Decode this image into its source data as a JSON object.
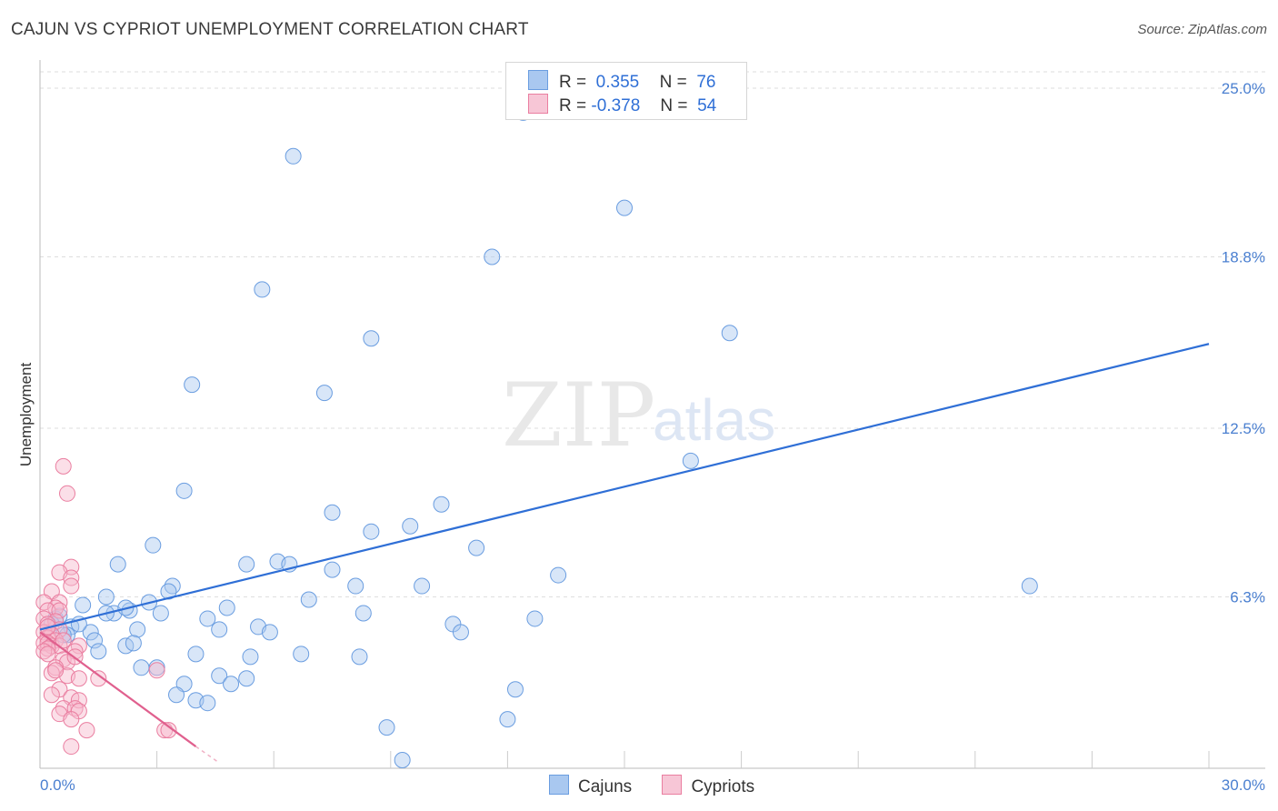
{
  "header": {
    "title": "CAJUN VS CYPRIOT UNEMPLOYMENT CORRELATION CHART",
    "source": "Source: ZipAtlas.com"
  },
  "watermark": {
    "zip": "ZIP",
    "atlas": "atlas"
  },
  "colors": {
    "cajun_fill": "#a9c8f0",
    "cajun_stroke": "#6a9de0",
    "cajun_line": "#2f6fd6",
    "cypriot_fill": "#f7b9cc",
    "cypriot_stroke": "#ea7ea0",
    "cypriot_line": "#e0608e",
    "accent_text": "#2f6fd6"
  },
  "legend": {
    "rows": [
      {
        "series": "Cajuns",
        "r_label": "R =",
        "r_value": "0.355",
        "n_label": "N =",
        "n_value": "76"
      },
      {
        "series": "Cypriots",
        "r_label": "R =",
        "r_value": "-0.378",
        "n_label": "N =",
        "n_value": "54"
      }
    ]
  },
  "bottom_legend": [
    "Cajuns",
    "Cypriots"
  ],
  "chart_data": {
    "type": "scatter",
    "title": "CAJUN VS CYPRIOT UNEMPLOYMENT CORRELATION CHART",
    "xlabel": "",
    "ylabel": "Unemployment",
    "xlim": [
      0,
      30
    ],
    "ylim": [
      0,
      25
    ],
    "x_tick_labels": [
      "0.0%",
      "30.0%"
    ],
    "y_ticks": [
      6.3,
      12.5,
      18.8,
      25.0
    ],
    "y_tick_labels": [
      "6.3%",
      "12.5%",
      "18.8%",
      "25.0%"
    ],
    "grid": true,
    "legend_position": "top-center",
    "series": [
      {
        "name": "Cajuns",
        "r": 0.355,
        "n": 76,
        "trendline": {
          "x": [
            0,
            30
          ],
          "y": [
            5.1,
            15.6
          ]
        },
        "points": [
          [
            12.4,
            24.1
          ],
          [
            6.5,
            22.5
          ],
          [
            15.0,
            20.6
          ],
          [
            11.6,
            18.8
          ],
          [
            5.7,
            17.6
          ],
          [
            17.7,
            16.0
          ],
          [
            8.5,
            15.8
          ],
          [
            3.9,
            14.1
          ],
          [
            7.3,
            13.8
          ],
          [
            16.7,
            11.3
          ],
          [
            3.7,
            10.2
          ],
          [
            10.3,
            9.7
          ],
          [
            7.5,
            9.4
          ],
          [
            9.5,
            8.9
          ],
          [
            8.5,
            8.7
          ],
          [
            2.9,
            8.2
          ],
          [
            11.2,
            8.1
          ],
          [
            2.0,
            7.5
          ],
          [
            5.3,
            7.5
          ],
          [
            6.1,
            7.6
          ],
          [
            6.4,
            7.5
          ],
          [
            7.5,
            7.3
          ],
          [
            13.3,
            7.1
          ],
          [
            25.4,
            6.7
          ],
          [
            8.1,
            6.7
          ],
          [
            9.8,
            6.7
          ],
          [
            3.4,
            6.7
          ],
          [
            3.3,
            6.5
          ],
          [
            1.7,
            6.3
          ],
          [
            6.9,
            6.2
          ],
          [
            2.8,
            6.1
          ],
          [
            1.1,
            6.0
          ],
          [
            4.8,
            5.9
          ],
          [
            2.3,
            5.8
          ],
          [
            1.9,
            5.7
          ],
          [
            1.7,
            5.7
          ],
          [
            3.1,
            5.7
          ],
          [
            8.3,
            5.7
          ],
          [
            12.7,
            5.5
          ],
          [
            4.3,
            5.5
          ],
          [
            0.4,
            5.5
          ],
          [
            0.3,
            5.3
          ],
          [
            5.6,
            5.2
          ],
          [
            10.6,
            5.3
          ],
          [
            4.6,
            5.1
          ],
          [
            2.5,
            5.1
          ],
          [
            0.8,
            5.2
          ],
          [
            1.3,
            5.0
          ],
          [
            5.9,
            5.0
          ],
          [
            10.8,
            5.0
          ],
          [
            0.7,
            4.9
          ],
          [
            1.4,
            4.7
          ],
          [
            2.2,
            4.5
          ],
          [
            2.4,
            4.6
          ],
          [
            1.5,
            4.3
          ],
          [
            4.0,
            4.2
          ],
          [
            5.4,
            4.1
          ],
          [
            6.7,
            4.2
          ],
          [
            8.2,
            4.1
          ],
          [
            2.6,
            3.7
          ],
          [
            3.0,
            3.7
          ],
          [
            4.6,
            3.4
          ],
          [
            5.3,
            3.3
          ],
          [
            3.7,
            3.1
          ],
          [
            4.9,
            3.1
          ],
          [
            12.2,
            2.9
          ],
          [
            3.5,
            2.7
          ],
          [
            4.0,
            2.5
          ],
          [
            4.3,
            2.4
          ],
          [
            12.0,
            1.8
          ],
          [
            8.9,
            1.5
          ],
          [
            9.3,
            0.3
          ],
          [
            0.5,
            5.6
          ],
          [
            1.0,
            5.3
          ],
          [
            0.6,
            4.9
          ],
          [
            2.2,
            5.9
          ]
        ]
      },
      {
        "name": "Cypriots",
        "r": -0.378,
        "n": 54,
        "trendline": {
          "x": [
            0,
            4.0
          ],
          "y": [
            5.0,
            0.8
          ],
          "dashed_extension": {
            "x": [
              4.0,
              4.6
            ],
            "y": [
              0.8,
              0.2
            ]
          }
        },
        "points": [
          [
            0.6,
            11.1
          ],
          [
            0.7,
            10.1
          ],
          [
            0.8,
            7.4
          ],
          [
            0.5,
            7.2
          ],
          [
            0.8,
            7.0
          ],
          [
            0.8,
            6.7
          ],
          [
            0.3,
            6.5
          ],
          [
            0.1,
            6.1
          ],
          [
            0.5,
            6.1
          ],
          [
            0.4,
            5.9
          ],
          [
            0.2,
            5.8
          ],
          [
            0.5,
            5.8
          ],
          [
            0.1,
            5.5
          ],
          [
            0.4,
            5.4
          ],
          [
            0.2,
            5.3
          ],
          [
            0.5,
            5.1
          ],
          [
            0.1,
            5.0
          ],
          [
            0.3,
            4.9
          ],
          [
            0.2,
            4.8
          ],
          [
            0.4,
            4.7
          ],
          [
            0.1,
            4.6
          ],
          [
            0.2,
            4.6
          ],
          [
            0.3,
            4.5
          ],
          [
            0.5,
            4.5
          ],
          [
            1.0,
            4.5
          ],
          [
            0.2,
            4.4
          ],
          [
            0.1,
            4.3
          ],
          [
            0.9,
            4.3
          ],
          [
            0.2,
            4.2
          ],
          [
            0.6,
            4.0
          ],
          [
            0.7,
            3.9
          ],
          [
            0.4,
            3.7
          ],
          [
            0.3,
            3.5
          ],
          [
            0.7,
            3.4
          ],
          [
            1.0,
            3.3
          ],
          [
            1.5,
            3.3
          ],
          [
            3.0,
            3.6
          ],
          [
            0.5,
            2.9
          ],
          [
            0.3,
            2.7
          ],
          [
            0.8,
            2.6
          ],
          [
            1.0,
            2.5
          ],
          [
            0.6,
            2.2
          ],
          [
            0.9,
            2.2
          ],
          [
            1.0,
            2.1
          ],
          [
            0.5,
            2.0
          ],
          [
            0.8,
            1.8
          ],
          [
            1.2,
            1.4
          ],
          [
            3.2,
            1.4
          ],
          [
            3.3,
            1.4
          ],
          [
            0.8,
            0.8
          ],
          [
            0.2,
            5.2
          ],
          [
            0.6,
            4.7
          ],
          [
            0.9,
            4.1
          ],
          [
            0.4,
            3.6
          ]
        ]
      }
    ]
  }
}
